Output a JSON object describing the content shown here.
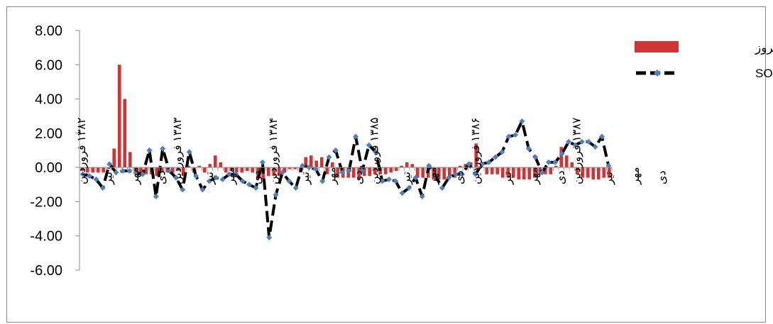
{
  "colors": {
    "bars": "#d03434",
    "line": "#000000",
    "markers": "#4f81bd",
    "axis": "#8c8c8c"
  },
  "chart_data": {
    "type": "bar",
    "title": "",
    "xlabel": "",
    "ylabel": "",
    "ylim": [
      -6,
      8
    ],
    "y_ticks": [
      "8.00",
      "6.00",
      "4.00",
      "2.00",
      "0.00",
      "-2.00",
      "-4.00",
      "-6.00"
    ],
    "grid": false,
    "legend_position": "top-right",
    "x_tick_labels": [
      {
        "index": 0,
        "text": "۱۳۸۲ فروردین"
      },
      {
        "index": 5,
        "text": "تیر"
      },
      {
        "index": 10,
        "text": "مهر"
      },
      {
        "index": 15,
        "text": "دی"
      },
      {
        "index": 18,
        "text": "۱۳۸۳ فروردین"
      },
      {
        "index": 24,
        "text": "تیر"
      },
      {
        "index": 28,
        "text": "مهر"
      },
      {
        "index": 33,
        "text": "دی"
      },
      {
        "index": 36,
        "text": "۱۳۸۴ فروردین"
      },
      {
        "index": 42,
        "text": "تیر"
      },
      {
        "index": 47,
        "text": "مهر"
      },
      {
        "index": 52,
        "text": "دی"
      },
      {
        "index": 55,
        "text": "۱۳۸۵ فروردین"
      },
      {
        "index": 61,
        "text": "تیر"
      },
      {
        "index": 66,
        "text": "مهر"
      },
      {
        "index": 71,
        "text": "دی"
      },
      {
        "index": 74,
        "text": "۱۳۸۶ فروردین"
      },
      {
        "index": 80,
        "text": "تیر"
      },
      {
        "index": 85,
        "text": "مهر"
      },
      {
        "index": 90,
        "text": "دی"
      },
      {
        "index": 93,
        "text": "۱۳۸۷ فروردین"
      },
      {
        "index": 99,
        "text": "تیر"
      },
      {
        "index": 104,
        "text": "مهر"
      },
      {
        "index": 109,
        "text": "دی"
      }
    ],
    "series": [
      {
        "name": "موارد بروز",
        "kind": "bar",
        "values": [
          -0.2,
          -0.3,
          -0.3,
          -0.3,
          -0.3,
          -0.1,
          1.1,
          6.0,
          4.0,
          0.9,
          -0.4,
          -0.3,
          -0.4,
          -0.4,
          -0.5,
          -0.3,
          -0.3,
          -0.3,
          -0.2,
          -0.5,
          0.1,
          -0.3,
          0.1,
          -0.3,
          0.2,
          0.7,
          0.3,
          -0.3,
          -0.2,
          -0.3,
          -0.3,
          -0.2,
          -0.3,
          -0.7,
          -0.7,
          -0.5,
          -0.5,
          -0.5,
          -0.3,
          -0.1,
          -0.1,
          -0.3,
          0.6,
          0.7,
          0.4,
          0.6,
          -0.4,
          0.3,
          -0.6,
          -0.6,
          -0.6,
          -0.6,
          -0.7,
          -0.5,
          -0.5,
          -0.4,
          -0.4,
          -0.4,
          -0.3,
          -0.2,
          0.1,
          0.3,
          0.2,
          -0.6,
          -0.6,
          -0.6,
          -0.7,
          -0.7,
          -0.7,
          -0.6,
          -0.6,
          0.1,
          0.2,
          0.3,
          1.4,
          0.3,
          -0.4,
          -0.4,
          -0.4,
          -0.6,
          -0.6,
          -0.6,
          -0.7,
          -0.7,
          -0.7,
          -0.6,
          -0.4,
          -0.4,
          -0.4,
          0.1,
          1.2,
          0.7,
          0.3,
          -0.4,
          -0.6,
          -0.6,
          -0.7,
          -0.7,
          -0.6,
          -0.6
        ]
      },
      {
        "name": "شاخص SOI",
        "kind": "line",
        "values": [
          -0.4,
          -0.5,
          -0.7,
          -1.2,
          0.2,
          -0.3,
          -0.2,
          -0.2,
          -0.3,
          -0.4,
          1.0,
          -1.7,
          1.1,
          -0.2,
          -0.6,
          -1.3,
          0.9,
          -0.5,
          -1.3,
          -0.8,
          -0.6,
          -0.7,
          -0.4,
          -0.4,
          -0.8,
          -1.0,
          -1.2,
          0.3,
          -4.1,
          -1.6,
          -0.3,
          -0.8,
          -1.2,
          0.1,
          0.0,
          -0.1,
          -0.8,
          0.6,
          1.0,
          -0.3,
          -0.2,
          1.8,
          -0.2,
          1.3,
          0.9,
          -0.8,
          -0.7,
          -0.8,
          -1.5,
          -1.2,
          -0.6,
          -1.7,
          0.1,
          -0.5,
          -1.2,
          -0.6,
          -0.4,
          -0.4,
          0.2,
          -0.4,
          0.2,
          0.3,
          0.6,
          0.9,
          1.8,
          1.9,
          2.7,
          1.1,
          0.6,
          -0.3,
          0.3,
          0.3,
          0.8,
          1.5,
          1.3,
          1.5,
          1.5,
          1.2,
          1.8,
          0.1
        ]
      }
    ]
  }
}
